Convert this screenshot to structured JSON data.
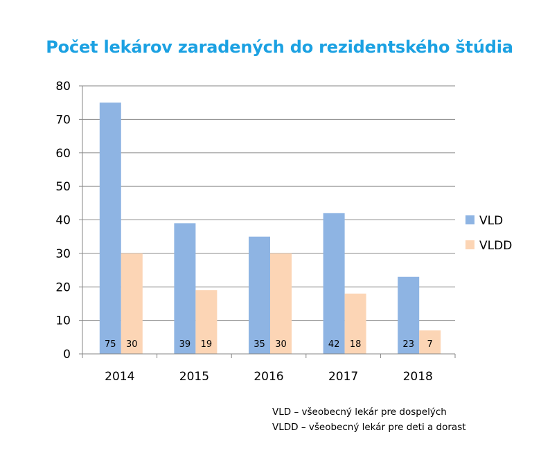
{
  "chart_data": {
    "type": "bar",
    "title": "Počet lekárov zaradených do rezidentského štúdia",
    "title_color": "#1ba1e2",
    "categories": [
      "2014",
      "2015",
      "2016",
      "2017",
      "2018"
    ],
    "series": [
      {
        "name": "VLD",
        "values": [
          75,
          39,
          35,
          42,
          23
        ],
        "color": "#8eb4e3"
      },
      {
        "name": "VLDD",
        "values": [
          30,
          19,
          30,
          18,
          7
        ],
        "color": "#fcd5b5"
      }
    ],
    "ylim": [
      0,
      80
    ],
    "yticks": [
      "0",
      "10",
      "20",
      "30",
      "40",
      "50",
      "60",
      "70",
      "80"
    ],
    "grid": true,
    "legend_position": "right",
    "data_labels": true
  },
  "footnotes": [
    "VLD – všeobecný lekár pre dospelých",
    "VLDD – všeobecný lekár pre deti a dorast"
  ]
}
